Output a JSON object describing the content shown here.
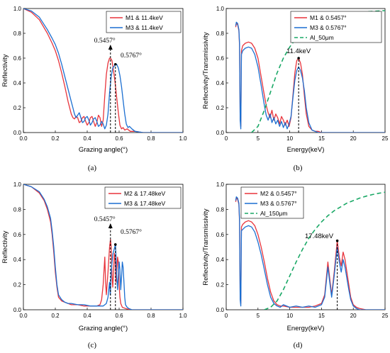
{
  "chart_data": [
    {
      "type": "line",
      "caption": "(a)",
      "xlabel": "Grazing angle(°)",
      "ylabel": "Reflectivity",
      "xlim": [
        0.0,
        1.0
      ],
      "ylim": [
        0.0,
        1.0
      ],
      "xticks": [
        "0.0",
        "0.2",
        "0.4",
        "0.6",
        "0.8",
        "1.0"
      ],
      "yticks": [
        "0.0",
        "0.2",
        "0.4",
        "0.6",
        "0.8",
        "1.0"
      ],
      "legend_position": "top-right",
      "annotations": [
        {
          "text": "0.5457°",
          "x": 0.5457,
          "peak": 0.6,
          "style": "arrow"
        },
        {
          "text": "0.5767°",
          "x": 0.5767,
          "peak": 0.55,
          "style": "marker"
        }
      ],
      "series": [
        {
          "name": "M1 & 11.4keV",
          "color": "#e8343c",
          "x": [
            0,
            0.05,
            0.1,
            0.15,
            0.18,
            0.2,
            0.22,
            0.24,
            0.26,
            0.28,
            0.3,
            0.31,
            0.32,
            0.33,
            0.34,
            0.35,
            0.36,
            0.37,
            0.38,
            0.39,
            0.4,
            0.41,
            0.42,
            0.43,
            0.44,
            0.45,
            0.46,
            0.47,
            0.48,
            0.49,
            0.5,
            0.51,
            0.52,
            0.53,
            0.54,
            0.5457,
            0.555,
            0.565,
            0.575,
            0.585,
            0.595,
            0.605,
            0.615,
            0.625,
            0.635,
            0.65,
            0.67,
            0.7,
            0.75,
            0.8,
            0.9,
            1.0
          ],
          "y": [
            1.0,
            0.97,
            0.91,
            0.8,
            0.72,
            0.66,
            0.58,
            0.48,
            0.37,
            0.25,
            0.15,
            0.12,
            0.11,
            0.13,
            0.12,
            0.08,
            0.09,
            0.12,
            0.13,
            0.09,
            0.06,
            0.08,
            0.12,
            0.13,
            0.09,
            0.05,
            0.08,
            0.14,
            0.12,
            0.05,
            0.1,
            0.3,
            0.47,
            0.56,
            0.6,
            0.6,
            0.58,
            0.5,
            0.4,
            0.28,
            0.16,
            0.06,
            0.03,
            0.04,
            0.02,
            0.03,
            0.01,
            0.01,
            0.0,
            0.0,
            0.0,
            0.0
          ]
        },
        {
          "name": "M3 & 11.4keV",
          "color": "#1c6fd1",
          "x": [
            0,
            0.05,
            0.1,
            0.15,
            0.18,
            0.2,
            0.22,
            0.24,
            0.26,
            0.28,
            0.3,
            0.31,
            0.32,
            0.33,
            0.34,
            0.35,
            0.36,
            0.37,
            0.38,
            0.39,
            0.4,
            0.41,
            0.42,
            0.43,
            0.44,
            0.45,
            0.46,
            0.47,
            0.48,
            0.49,
            0.5,
            0.51,
            0.52,
            0.53,
            0.54,
            0.55,
            0.56,
            0.5767,
            0.585,
            0.595,
            0.605,
            0.615,
            0.625,
            0.635,
            0.645,
            0.655,
            0.665,
            0.68,
            0.7,
            0.75,
            0.8,
            0.9,
            1.0
          ],
          "y": [
            1.0,
            0.98,
            0.93,
            0.83,
            0.76,
            0.71,
            0.64,
            0.55,
            0.45,
            0.35,
            0.25,
            0.2,
            0.15,
            0.12,
            0.14,
            0.16,
            0.12,
            0.08,
            0.09,
            0.12,
            0.13,
            0.1,
            0.06,
            0.08,
            0.11,
            0.12,
            0.09,
            0.05,
            0.06,
            0.09,
            0.07,
            0.03,
            0.06,
            0.15,
            0.32,
            0.45,
            0.52,
            0.55,
            0.55,
            0.52,
            0.46,
            0.37,
            0.26,
            0.15,
            0.07,
            0.04,
            0.05,
            0.03,
            0.01,
            0.0,
            0.0,
            0.0,
            0.0
          ]
        }
      ]
    },
    {
      "type": "line",
      "caption": "(b)",
      "xlabel": "Energy(keV)",
      "ylabel": "Reflectivity/Transmissivity",
      "xlim": [
        0,
        25
      ],
      "ylim": [
        0.0,
        1.0
      ],
      "xticks": [
        "0",
        "5",
        "10",
        "15",
        "20",
        "25"
      ],
      "yticks": [
        "0.0",
        "0.2",
        "0.4",
        "0.6",
        "0.8",
        "1.0"
      ],
      "legend_position": "right",
      "annotations": [
        {
          "text": "11.4keV",
          "x": 11.4,
          "peak": 0.6,
          "style": "marker"
        }
      ],
      "series": [
        {
          "name": "M1 & 0.5457°",
          "color": "#e8343c",
          "x": [
            1.5,
            1.6,
            1.8,
            2.0,
            2.1,
            2.2,
            2.3,
            2.4,
            2.6,
            3,
            3.5,
            4,
            4.5,
            5,
            5.5,
            6,
            6.3,
            6.6,
            6.9,
            7.2,
            7.5,
            7.8,
            8.1,
            8.4,
            8.7,
            9,
            9.3,
            9.6,
            9.9,
            10.2,
            10.5,
            10.8,
            11.1,
            11.4,
            11.7,
            12,
            12.3,
            12.6,
            13,
            13.5,
            14,
            14.5,
            15,
            16,
            18,
            20,
            25
          ],
          "y": [
            0.85,
            0.88,
            0.87,
            0.82,
            0.7,
            0.12,
            0.05,
            0.66,
            0.7,
            0.72,
            0.73,
            0.72,
            0.68,
            0.6,
            0.45,
            0.3,
            0.22,
            0.16,
            0.12,
            0.18,
            0.1,
            0.15,
            0.12,
            0.07,
            0.13,
            0.1,
            0.06,
            0.1,
            0.05,
            0.12,
            0.3,
            0.48,
            0.58,
            0.6,
            0.56,
            0.47,
            0.3,
            0.15,
            0.05,
            0.02,
            0.01,
            0.01,
            0.0,
            0.0,
            0.0,
            0.0,
            0.0
          ]
        },
        {
          "name": "M3 & 0.5767°",
          "color": "#1c6fd1",
          "x": [
            1.5,
            1.6,
            1.8,
            2.0,
            2.1,
            2.2,
            2.3,
            2.4,
            2.6,
            3,
            3.5,
            4,
            4.5,
            5,
            5.5,
            6,
            6.3,
            6.6,
            6.9,
            7.2,
            7.5,
            7.8,
            8.1,
            8.4,
            8.7,
            9,
            9.3,
            9.6,
            9.9,
            10.2,
            10.5,
            10.8,
            11.1,
            11.4,
            11.7,
            12,
            12.3,
            12.6,
            13,
            13.5,
            14,
            14.5,
            15,
            16,
            18,
            20,
            25
          ],
          "y": [
            0.86,
            0.89,
            0.88,
            0.83,
            0.72,
            0.1,
            0.03,
            0.63,
            0.66,
            0.68,
            0.69,
            0.68,
            0.63,
            0.53,
            0.38,
            0.22,
            0.14,
            0.1,
            0.15,
            0.08,
            0.12,
            0.07,
            0.1,
            0.05,
            0.09,
            0.04,
            0.08,
            0.03,
            0.07,
            0.13,
            0.28,
            0.42,
            0.5,
            0.53,
            0.5,
            0.44,
            0.34,
            0.2,
            0.08,
            0.02,
            0.01,
            0.0,
            0.0,
            0.0,
            0.0,
            0.0,
            0.0
          ]
        },
        {
          "name": "Al_50μm",
          "color": "#1aa866",
          "dash": true,
          "x": [
            4,
            5,
            6,
            7,
            8,
            9,
            10,
            11,
            12,
            13,
            14,
            15,
            16,
            17,
            18,
            19,
            20,
            21,
            22,
            23,
            24,
            25
          ],
          "y": [
            0.0,
            0.05,
            0.18,
            0.33,
            0.48,
            0.6,
            0.69,
            0.76,
            0.81,
            0.85,
            0.88,
            0.9,
            0.92,
            0.93,
            0.945,
            0.955,
            0.962,
            0.968,
            0.973,
            0.977,
            0.98,
            0.983
          ]
        }
      ]
    },
    {
      "type": "line",
      "caption": "(c)",
      "xlabel": "Grazing angle(°)",
      "ylabel": "Reflectivity",
      "xlim": [
        0.0,
        1.0
      ],
      "ylim": [
        0.0,
        1.0
      ],
      "xticks": [
        "0.0",
        "0.2",
        "0.4",
        "0.6",
        "0.8",
        "1.0"
      ],
      "yticks": [
        "0.0",
        "0.2",
        "0.4",
        "0.6",
        "0.8",
        "1.0"
      ],
      "legend_position": "top-right",
      "annotations": [
        {
          "text": "0.5457°",
          "x": 0.5457,
          "peak": 0.56,
          "style": "arrow"
        },
        {
          "text": "0.5767°",
          "x": 0.5767,
          "peak": 0.52,
          "style": "marker"
        }
      ],
      "series": [
        {
          "name": "M2 & 17.48keV",
          "color": "#e8343c",
          "x": [
            0,
            0.05,
            0.1,
            0.13,
            0.15,
            0.17,
            0.18,
            0.19,
            0.2,
            0.21,
            0.22,
            0.24,
            0.26,
            0.28,
            0.3,
            0.34,
            0.38,
            0.42,
            0.46,
            0.48,
            0.49,
            0.5,
            0.51,
            0.515,
            0.52,
            0.53,
            0.54,
            0.5457,
            0.55,
            0.555,
            0.56,
            0.565,
            0.57,
            0.575,
            0.58,
            0.585,
            0.59,
            0.595,
            0.6,
            0.605,
            0.61,
            0.62,
            0.64,
            0.67,
            0.7,
            0.8,
            0.9,
            1.0
          ],
          "y": [
            1.0,
            0.98,
            0.93,
            0.87,
            0.8,
            0.7,
            0.6,
            0.46,
            0.3,
            0.18,
            0.1,
            0.07,
            0.06,
            0.05,
            0.04,
            0.04,
            0.03,
            0.03,
            0.03,
            0.04,
            0.08,
            0.2,
            0.42,
            0.22,
            0.12,
            0.3,
            0.5,
            0.56,
            0.5,
            0.28,
            0.18,
            0.3,
            0.45,
            0.4,
            0.22,
            0.3,
            0.42,
            0.38,
            0.2,
            0.1,
            0.05,
            0.02,
            0.01,
            0.0,
            0.0,
            0.0,
            0.0,
            0.0
          ]
        },
        {
          "name": "M3 & 17.48keV",
          "color": "#1c6fd1",
          "x": [
            0,
            0.05,
            0.1,
            0.13,
            0.15,
            0.17,
            0.18,
            0.19,
            0.2,
            0.21,
            0.22,
            0.24,
            0.26,
            0.28,
            0.3,
            0.34,
            0.38,
            0.42,
            0.46,
            0.5,
            0.52,
            0.53,
            0.54,
            0.545,
            0.55,
            0.56,
            0.5767,
            0.58,
            0.585,
            0.59,
            0.595,
            0.6,
            0.605,
            0.61,
            0.615,
            0.62,
            0.625,
            0.63,
            0.635,
            0.64,
            0.65,
            0.66,
            0.68,
            0.7,
            0.8,
            0.9,
            1.0
          ],
          "y": [
            1.0,
            0.98,
            0.94,
            0.88,
            0.82,
            0.73,
            0.63,
            0.5,
            0.34,
            0.2,
            0.12,
            0.08,
            0.06,
            0.05,
            0.05,
            0.04,
            0.04,
            0.03,
            0.03,
            0.03,
            0.05,
            0.1,
            0.22,
            0.12,
            0.3,
            0.44,
            0.52,
            0.44,
            0.26,
            0.16,
            0.28,
            0.38,
            0.32,
            0.16,
            0.26,
            0.38,
            0.34,
            0.22,
            0.1,
            0.04,
            0.02,
            0.01,
            0.0,
            0.0,
            0.0,
            0.0,
            0.0
          ]
        }
      ]
    },
    {
      "type": "line",
      "caption": "(d)",
      "xlabel": "Energy(keV)",
      "ylabel": "Reflectivity/Transmissivity",
      "xlim": [
        0,
        25
      ],
      "ylim": [
        0.0,
        1.0
      ],
      "xticks": [
        "0",
        "5",
        "10",
        "15",
        "20",
        "25"
      ],
      "yticks": [
        "0.0",
        "0.2",
        "0.4",
        "0.6",
        "0.8",
        "1.0"
      ],
      "legend_position": "top-left",
      "annotations": [
        {
          "text": "17.48keV",
          "x": 17.48,
          "peak": 0.55,
          "style": "marker"
        }
      ],
      "series": [
        {
          "name": "M2 & 0.5457°",
          "color": "#e8343c",
          "x": [
            1.5,
            1.6,
            1.8,
            2.0,
            2.1,
            2.2,
            2.3,
            2.4,
            2.6,
            3,
            3.5,
            4,
            4.5,
            5,
            5.5,
            6,
            6.5,
            7,
            7.5,
            8,
            8.5,
            9,
            10,
            11,
            12,
            13,
            14,
            15,
            15.5,
            16,
            16.3,
            16.6,
            17,
            17.48,
            17.8,
            18.1,
            18.4,
            18.7,
            19,
            19.3,
            19.6,
            20,
            20.5,
            21,
            22,
            25
          ],
          "y": [
            0.86,
            0.89,
            0.88,
            0.84,
            0.7,
            0.1,
            0.05,
            0.66,
            0.68,
            0.7,
            0.71,
            0.7,
            0.67,
            0.6,
            0.5,
            0.38,
            0.25,
            0.14,
            0.07,
            0.04,
            0.03,
            0.03,
            0.02,
            0.02,
            0.02,
            0.02,
            0.03,
            0.05,
            0.12,
            0.38,
            0.25,
            0.12,
            0.3,
            0.55,
            0.42,
            0.35,
            0.46,
            0.4,
            0.3,
            0.2,
            0.1,
            0.04,
            0.02,
            0.01,
            0.0,
            0.0
          ]
        },
        {
          "name": "M3 & 0.5767°",
          "color": "#1c6fd1",
          "x": [
            1.5,
            1.6,
            1.8,
            2.0,
            2.1,
            2.2,
            2.3,
            2.4,
            2.6,
            3,
            3.5,
            4,
            4.5,
            5,
            5.5,
            6,
            6.5,
            7,
            7.5,
            8,
            8.5,
            9,
            10,
            11,
            12,
            13,
            14,
            15,
            15.5,
            16,
            16.3,
            16.6,
            17,
            17.48,
            17.8,
            18.1,
            18.4,
            18.7,
            19,
            19.3,
            19.6,
            20,
            20.5,
            21,
            22,
            25
          ],
          "y": [
            0.87,
            0.9,
            0.89,
            0.85,
            0.72,
            0.08,
            0.03,
            0.63,
            0.64,
            0.66,
            0.67,
            0.66,
            0.62,
            0.54,
            0.44,
            0.32,
            0.2,
            0.1,
            0.05,
            0.03,
            0.02,
            0.04,
            0.02,
            0.03,
            0.02,
            0.03,
            0.02,
            0.04,
            0.1,
            0.34,
            0.22,
            0.1,
            0.27,
            0.5,
            0.38,
            0.3,
            0.4,
            0.34,
            0.25,
            0.16,
            0.08,
            0.03,
            0.01,
            0.0,
            0.0,
            0.0
          ]
        },
        {
          "name": "Al_150μm",
          "color": "#1aa866",
          "dash": true,
          "x": [
            6,
            7,
            8,
            9,
            10,
            11,
            12,
            13,
            14,
            15,
            16,
            17,
            18,
            19,
            20,
            21,
            22,
            23,
            24,
            25
          ],
          "y": [
            0.0,
            0.02,
            0.07,
            0.16,
            0.27,
            0.38,
            0.48,
            0.57,
            0.64,
            0.7,
            0.75,
            0.79,
            0.82,
            0.85,
            0.87,
            0.89,
            0.905,
            0.918,
            0.928,
            0.937
          ]
        }
      ]
    }
  ]
}
